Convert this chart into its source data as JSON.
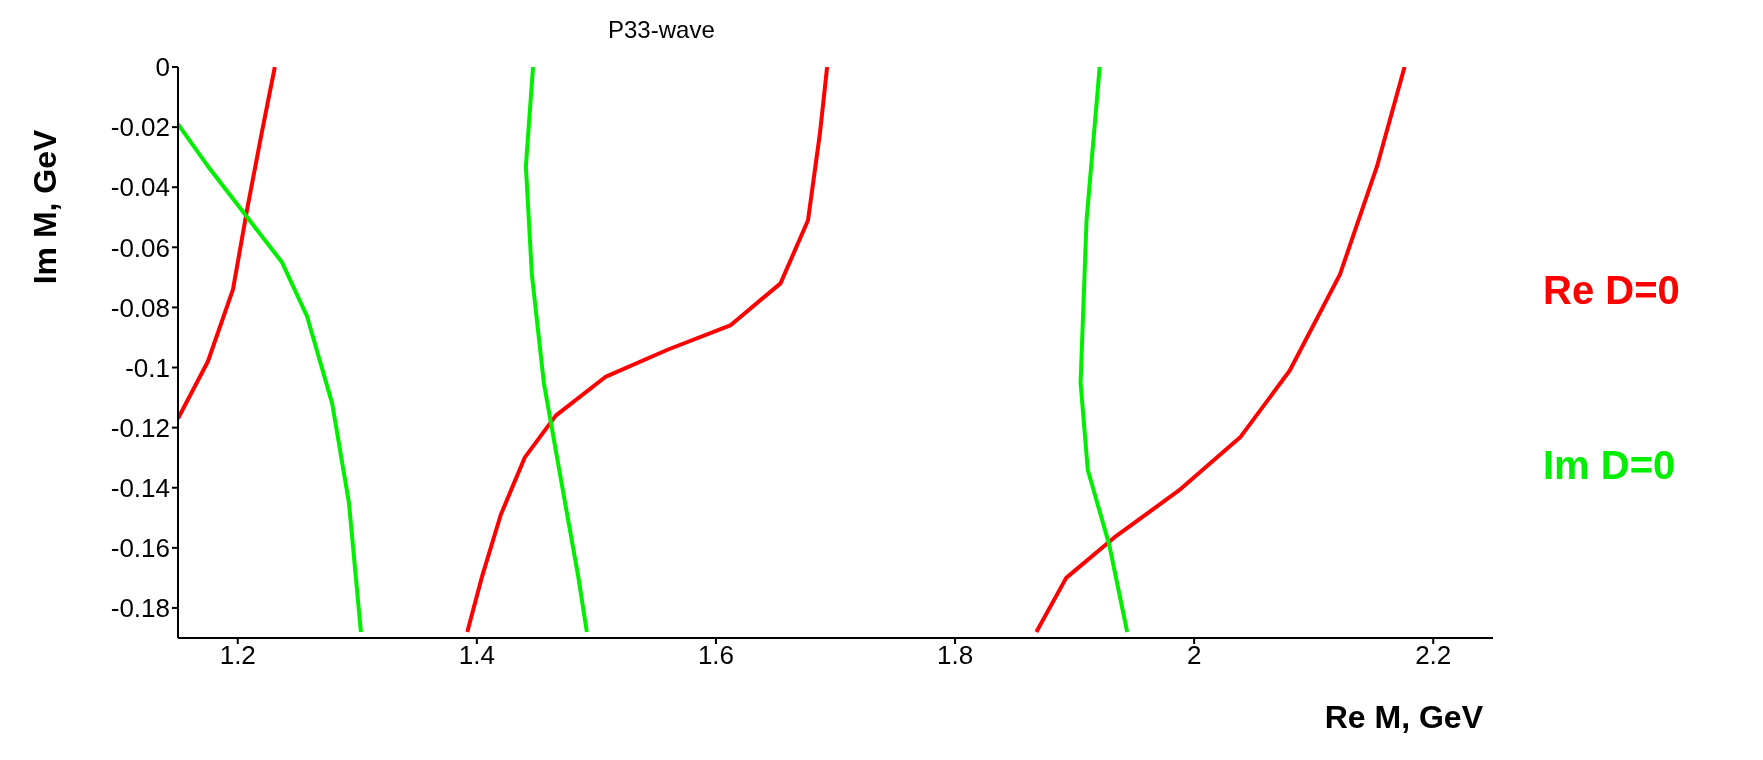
{
  "chart_data": {
    "type": "line",
    "title": "P33-wave",
    "xlabel": "Re M, GeV",
    "ylabel": "Im M, GeV",
    "xlim": [
      1.15,
      2.25
    ],
    "ylim": [
      -0.19,
      0
    ],
    "xticks": [
      1.2,
      1.4,
      1.6,
      1.8,
      2,
      2.2
    ],
    "yticks": [
      0,
      -0.02,
      -0.04,
      -0.06,
      -0.08,
      -0.1,
      -0.12,
      -0.14,
      -0.16,
      -0.18
    ],
    "grid": false,
    "legend": "right",
    "marker": "none",
    "line_style": "solid",
    "series": [
      {
        "name": "Re D=0",
        "color": "#ff0000",
        "x": [
          1.15,
          1.175,
          1.196,
          1.208,
          1.22,
          1.231,
          null,
          1.392,
          1.404,
          1.42,
          1.44,
          1.466,
          1.508,
          1.56,
          1.612,
          1.654,
          1.677,
          1.687,
          1.693,
          null,
          1.868,
          1.893,
          1.935,
          1.987,
          2.039,
          2.08,
          2.122,
          2.153,
          2.176
        ],
        "values": [
          -0.117,
          -0.098,
          -0.074,
          -0.047,
          -0.022,
          0,
          null,
          -0.188,
          -0.17,
          -0.149,
          -0.13,
          -0.116,
          -0.103,
          -0.094,
          -0.086,
          -0.072,
          -0.051,
          -0.022,
          0,
          null,
          -0.188,
          -0.17,
          -0.156,
          -0.141,
          -0.123,
          -0.101,
          -0.069,
          -0.033,
          0
        ]
      },
      {
        "name": "Im D=0",
        "color": "#00ee00",
        "x": [
          1.15,
          1.175,
          1.206,
          1.237,
          1.258,
          1.279,
          1.293,
          1.303,
          null,
          1.447,
          1.441,
          1.446,
          1.456,
          1.472,
          1.485,
          1.492,
          null,
          1.921,
          1.91,
          1.905,
          1.911,
          1.929,
          1.944
        ],
        "values": [
          -0.019,
          -0.033,
          -0.049,
          -0.065,
          -0.083,
          -0.112,
          -0.145,
          -0.188,
          null,
          0,
          -0.033,
          -0.069,
          -0.105,
          -0.141,
          -0.17,
          -0.188,
          null,
          0,
          -0.051,
          -0.105,
          -0.134,
          -0.159,
          -0.188
        ]
      }
    ]
  }
}
